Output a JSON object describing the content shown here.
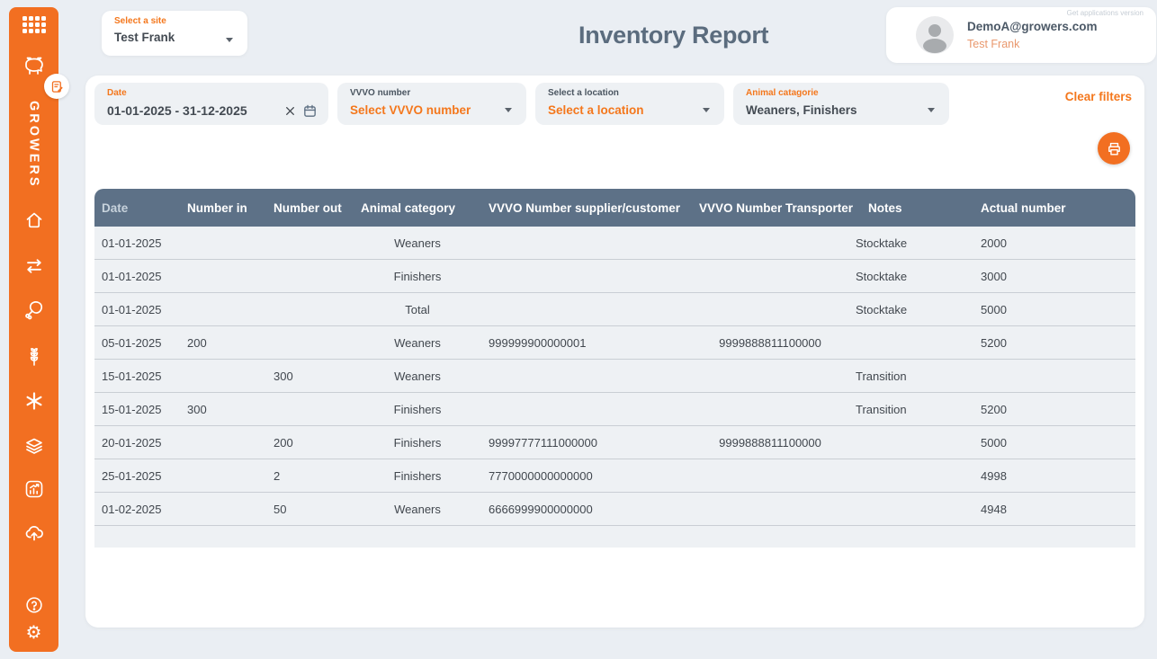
{
  "app": {
    "logo_text": "GROWERS",
    "version_note": "Get applications version"
  },
  "sidebar": {
    "icons": [
      "apps-grid",
      "pig",
      "notes-badge",
      "home",
      "transfer-arrows",
      "meat",
      "crop",
      "clover",
      "layers",
      "report-chart",
      "cloud-upload",
      "help",
      "settings"
    ]
  },
  "header": {
    "site_selector": {
      "label": "Select a site",
      "value": "Test Frank"
    },
    "title": "Inventory Report",
    "user": {
      "email": "DemoA@growers.com",
      "site": "Test Frank"
    }
  },
  "filters": {
    "date": {
      "label": "Date",
      "value": "01-01-2025 - 31-12-2025"
    },
    "vvvo": {
      "label": "VVVO number",
      "placeholder": "Select VVVO number"
    },
    "location": {
      "label": "Select a location",
      "placeholder": "Select a location"
    },
    "animal": {
      "label": "Animal catagorie",
      "value": "Weaners, Finishers"
    },
    "clear_label": "Clear filters"
  },
  "table": {
    "columns": [
      "Date",
      "Number in",
      "Number out",
      "Animal category",
      "VVVO Number supplier/customer",
      "VVVO Number Transporter",
      "Notes",
      "Actual number"
    ],
    "rows": [
      [
        "01-01-2025",
        "",
        "",
        "Weaners",
        "",
        "",
        "Stocktake",
        "2000"
      ],
      [
        "01-01-2025",
        "",
        "",
        "Finishers",
        "",
        "",
        "Stocktake",
        "3000"
      ],
      [
        "01-01-2025",
        "",
        "",
        "Total",
        "",
        "",
        "Stocktake",
        "5000"
      ],
      [
        "05-01-2025",
        "200",
        "",
        "Weaners",
        "999999900000001",
        "9999888811100000",
        "",
        "5200"
      ],
      [
        "15-01-2025",
        "",
        "300",
        "Weaners",
        "",
        "",
        "Transition",
        ""
      ],
      [
        "15-01-2025",
        "300",
        "",
        "Finishers",
        "",
        "",
        "Transition",
        "5200"
      ],
      [
        "20-01-2025",
        "",
        "200",
        "Finishers",
        "99997777111000000",
        "9999888811100000",
        "",
        "5000"
      ],
      [
        "25-01-2025",
        "",
        "2",
        "Finishers",
        "7770000000000000",
        "",
        "",
        "4998"
      ],
      [
        "01-02-2025",
        "",
        "50",
        "Weaners",
        "6666999900000000",
        "",
        "",
        "4948"
      ]
    ]
  },
  "colors": {
    "accent_orange": "#f26f21",
    "label_orange": "#f4771c",
    "table_header": "#5d7187",
    "title_slate": "#5b6c7e",
    "row_bg": "#eef1f4",
    "page_bg": "#eaeef3"
  }
}
